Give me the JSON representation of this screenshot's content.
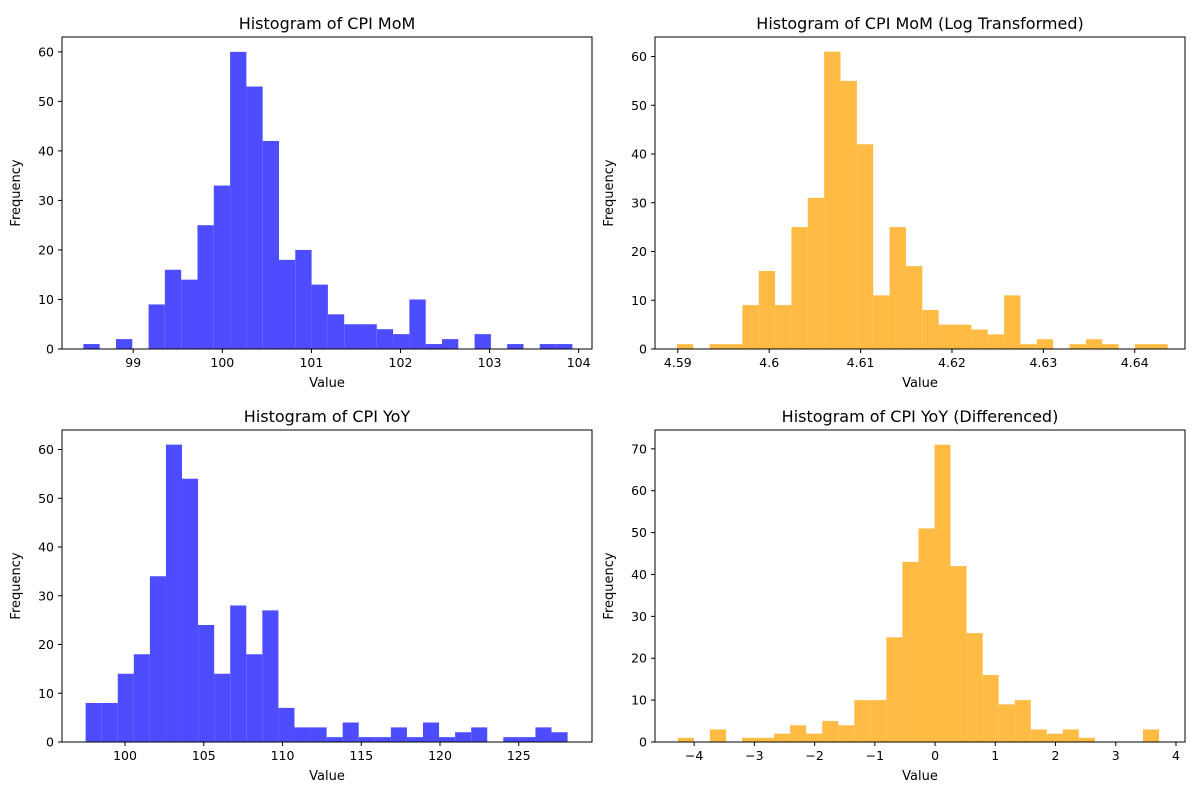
{
  "chart_data": [
    {
      "type": "bar",
      "title": "Histogram of CPI MoM",
      "xlabel": "Value",
      "ylabel": "Frequency",
      "color": "#4d4dff",
      "xlim": [
        98.2,
        104.15
      ],
      "ylim": [
        0,
        63
      ],
      "xticks": [
        99,
        100,
        101,
        102,
        103,
        104
      ],
      "yticks": [
        0,
        10,
        20,
        30,
        40,
        50,
        60
      ],
      "bin_start": 98.44,
      "bin_width": 0.183,
      "counts": [
        1,
        0,
        2,
        0,
        9,
        16,
        14,
        25,
        33,
        60,
        53,
        42,
        18,
        20,
        13,
        7,
        5,
        5,
        4,
        3,
        10,
        1,
        2,
        0,
        3,
        0,
        1,
        0,
        1,
        1
      ]
    },
    {
      "type": "bar",
      "title": "Histogram of CPI MoM (Log Transformed)",
      "xlabel": "Value",
      "ylabel": "Frequency",
      "color": "#ffbb44",
      "xlim": [
        4.5875,
        4.6455
      ],
      "ylim": [
        0,
        64
      ],
      "xticks": [
        4.59,
        4.6,
        4.61,
        4.62,
        4.63,
        4.64
      ],
      "yticks": [
        0,
        10,
        20,
        30,
        40,
        50,
        60
      ],
      "bin_start": 4.5899,
      "bin_width": 0.00179,
      "counts": [
        1,
        0,
        1,
        1,
        9,
        16,
        9,
        25,
        31,
        61,
        55,
        42,
        11,
        25,
        17,
        8,
        5,
        5,
        4,
        3,
        11,
        1,
        2,
        0,
        1,
        2,
        1,
        0,
        1,
        1
      ]
    },
    {
      "type": "bar",
      "title": "Histogram of CPI YoY",
      "xlabel": "Value",
      "ylabel": "Frequency",
      "color": "#4d4dff",
      "xlim": [
        96.0,
        129.65
      ],
      "ylim": [
        0,
        64
      ],
      "xticks": [
        100,
        105,
        110,
        115,
        120,
        125
      ],
      "yticks": [
        0,
        10,
        20,
        30,
        40,
        50,
        60
      ],
      "bin_start": 97.5,
      "bin_width": 1.02,
      "counts": [
        8,
        8,
        14,
        18,
        34,
        61,
        54,
        24,
        14,
        28,
        18,
        27,
        7,
        3,
        3,
        1,
        4,
        1,
        1,
        3,
        1,
        4,
        1,
        2,
        3,
        0,
        1,
        1,
        3,
        2
      ]
    },
    {
      "type": "bar",
      "title": "Histogram of CPI YoY (Differenced)",
      "xlabel": "Value",
      "ylabel": "Frequency",
      "color": "#ffbb44",
      "xlim": [
        -4.65,
        4.15
      ],
      "ylim": [
        0,
        74.5
      ],
      "xticks": [
        -4,
        -3,
        -2,
        -1,
        0,
        1,
        2,
        3,
        4
      ],
      "yticks": [
        0,
        10,
        20,
        30,
        40,
        50,
        60,
        70
      ],
      "bin_start": -4.27,
      "bin_width": 0.2663,
      "counts": [
        1,
        0,
        3,
        0,
        1,
        1,
        2,
        4,
        2,
        5,
        4,
        10,
        10,
        25,
        43,
        51,
        71,
        42,
        26,
        16,
        9,
        10,
        3,
        2,
        3,
        1,
        0,
        0,
        0,
        3
      ]
    }
  ]
}
